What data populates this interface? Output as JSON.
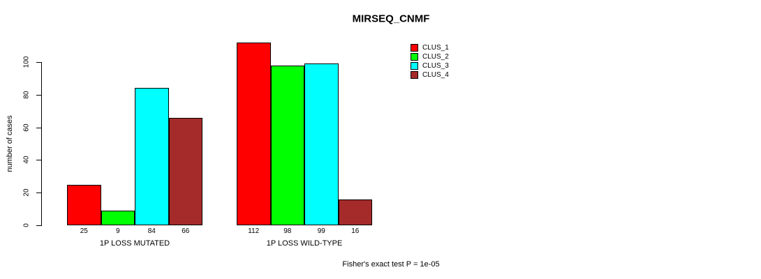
{
  "title": "MIRSEQ_CNMF",
  "y_axis": {
    "label": "number of cases"
  },
  "footer": "Fisher's exact test P = 1e-05",
  "legend": {
    "items": [
      {
        "label": "CLUS_1",
        "color": "#ff0000"
      },
      {
        "label": "CLUS_2",
        "color": "#00ff00"
      },
      {
        "label": "CLUS_3",
        "color": "#00ffff"
      },
      {
        "label": "CLUS_4",
        "color": "#a52a2a"
      }
    ]
  },
  "chart_data": {
    "type": "bar",
    "title": "MIRSEQ_CNMF",
    "xlabel": "",
    "ylabel": "number of cases",
    "ylim": [
      0,
      112
    ],
    "yticks": [
      0,
      20,
      40,
      60,
      80,
      100
    ],
    "grid": false,
    "legend_position": "top-right",
    "categories": [
      "1P LOSS MUTATED",
      "1P LOSS WILD-TYPE"
    ],
    "series": [
      {
        "name": "CLUS_1",
        "color": "#ff0000",
        "values": [
          25,
          112
        ]
      },
      {
        "name": "CLUS_2",
        "color": "#00ff00",
        "values": [
          9,
          98
        ]
      },
      {
        "name": "CLUS_3",
        "color": "#00ffff",
        "values": [
          84,
          99
        ]
      },
      {
        "name": "CLUS_4",
        "color": "#a52a2a",
        "values": [
          66,
          16
        ]
      }
    ],
    "bar_value_labels": true,
    "annotation": "Fisher's exact test P = 1e-05"
  }
}
